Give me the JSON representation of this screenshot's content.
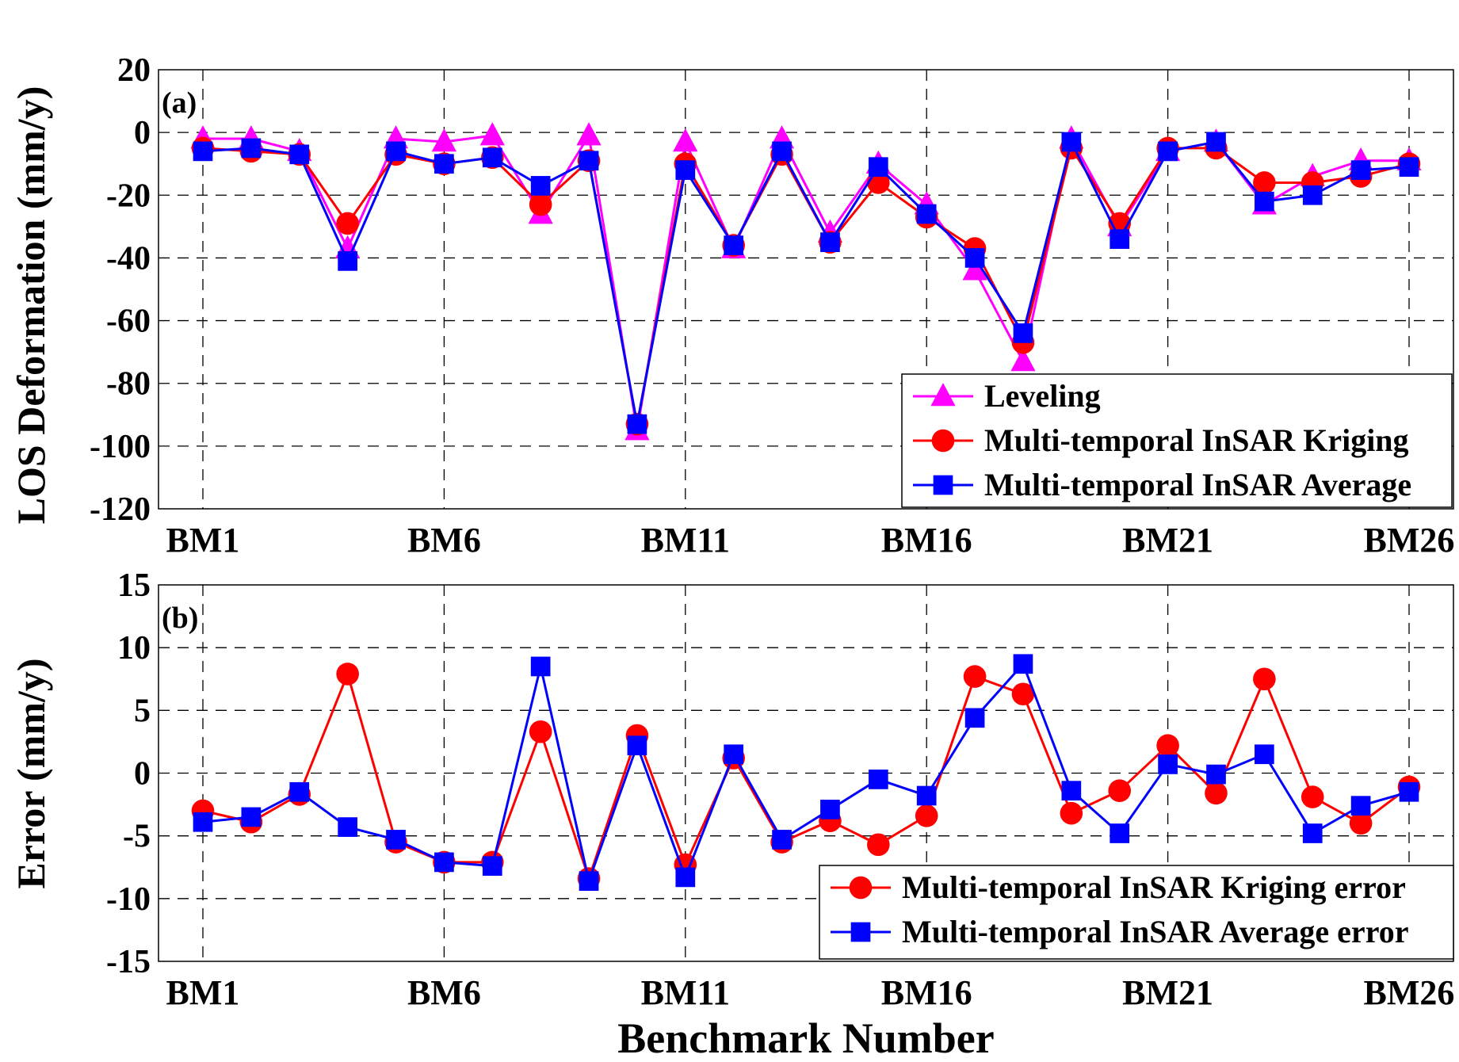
{
  "figure": {
    "xlabel": "Benchmark Number"
  },
  "chart_data": [
    {
      "type": "line",
      "panel_label": "(a)",
      "title": "",
      "xlabel": "",
      "ylabel": "LOS Deformation (mm/y)",
      "x": [
        1,
        2,
        3,
        4,
        5,
        6,
        7,
        8,
        9,
        10,
        11,
        12,
        13,
        14,
        15,
        16,
        17,
        18,
        19,
        20,
        21,
        22,
        23,
        24,
        25,
        26
      ],
      "xlim": [
        1,
        26
      ],
      "x_ticks": [
        1,
        6,
        11,
        16,
        21,
        26
      ],
      "x_tick_labels": [
        "BM1",
        "BM6",
        "BM11",
        "BM16",
        "BM21",
        "BM26"
      ],
      "ylim": [
        -120,
        20
      ],
      "y_ticks": [
        -120,
        -100,
        -80,
        -60,
        -40,
        -20,
        0,
        20
      ],
      "y_tick_labels": [
        "-120",
        "-100",
        "-80",
        "-60",
        "-40",
        "-20",
        "0",
        "20"
      ],
      "grid": true,
      "legend_position": "bottom-right",
      "series": [
        {
          "name": "Leveling",
          "color": "#ff00ff",
          "marker": "triangle",
          "values": [
            -2,
            -2,
            -6,
            -37,
            -2,
            -3,
            -1,
            -26,
            -1,
            -95,
            -3,
            -37,
            -2,
            -32,
            -10,
            -23,
            -44,
            -73,
            -2,
            -30,
            -6,
            -3,
            -23,
            -14,
            -9,
            -9
          ]
        },
        {
          "name": "Multi-temporal InSAR Kriging",
          "color": "#ff0000",
          "marker": "circle",
          "values": [
            -5,
            -6,
            -7,
            -29,
            -7,
            -10,
            -8,
            -23,
            -9,
            -93,
            -10,
            -36,
            -7,
            -35,
            -16,
            -27,
            -37,
            -67,
            -5,
            -29,
            -5,
            -5,
            -16,
            -16,
            -14,
            -10
          ]
        },
        {
          "name": "Multi-temporal InSAR Average",
          "color": "#0000ff",
          "marker": "square",
          "values": [
            -6,
            -5,
            -7,
            -41,
            -6,
            -10,
            -8,
            -17,
            -9,
            -93,
            -12,
            -36,
            -6,
            -35,
            -11,
            -26,
            -40,
            -64,
            -3,
            -34,
            -6,
            -3,
            -22,
            -20,
            -12,
            -11
          ]
        }
      ]
    },
    {
      "type": "line",
      "panel_label": "(b)",
      "title": "",
      "xlabel": "Benchmark Number",
      "ylabel": "Error (mm/y)",
      "x": [
        1,
        2,
        3,
        4,
        5,
        6,
        7,
        8,
        9,
        10,
        11,
        12,
        13,
        14,
        15,
        16,
        17,
        18,
        19,
        20,
        21,
        22,
        23,
        24,
        25,
        26
      ],
      "xlim": [
        1,
        26
      ],
      "x_ticks": [
        1,
        6,
        11,
        16,
        21,
        26
      ],
      "x_tick_labels": [
        "BM1",
        "BM6",
        "BM11",
        "BM16",
        "BM21",
        "BM26"
      ],
      "ylim": [
        -15,
        15
      ],
      "y_ticks": [
        -15,
        -10,
        -5,
        0,
        5,
        10,
        15
      ],
      "y_tick_labels": [
        "-15",
        "-10",
        "-5",
        "0",
        "5",
        "10",
        "15"
      ],
      "grid": true,
      "legend_position": "bottom-right",
      "series": [
        {
          "name": "Multi-temporal InSAR Kriging error",
          "color": "#ff0000",
          "marker": "circle",
          "values": [
            -3,
            -3.9,
            -1.7,
            7.9,
            -5.5,
            -7.1,
            -7.1,
            3.3,
            -8.4,
            3,
            -7.3,
            1.2,
            -5.5,
            -3.8,
            -5.7,
            -3.4,
            7.7,
            6.3,
            -3.2,
            -1.4,
            2.2,
            -1.6,
            7.5,
            -1.9,
            -4,
            -1.1
          ]
        },
        {
          "name": "Multi-temporal InSAR Average error",
          "color": "#0000ff",
          "marker": "square",
          "values": [
            -3.9,
            -3.5,
            -1.5,
            -4.3,
            -5.3,
            -7.1,
            -7.4,
            8.5,
            -8.6,
            2.2,
            -8.3,
            1.5,
            -5.3,
            -2.9,
            -0.5,
            -1.8,
            4.4,
            8.7,
            -1.4,
            -4.8,
            0.7,
            -0.1,
            1.5,
            -4.8,
            -2.6,
            -1.5
          ]
        }
      ]
    }
  ]
}
